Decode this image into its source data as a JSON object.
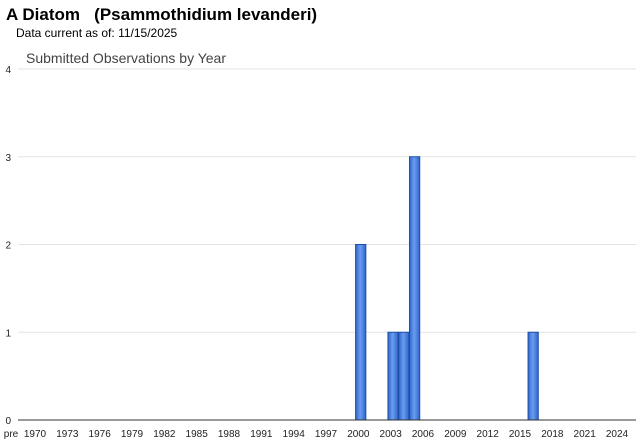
{
  "header": {
    "title": "A Diatom   (Psammothidium levanderi)",
    "data_current_label": "Data current as of:",
    "data_current_date": "11/15/2025"
  },
  "chart_data": {
    "type": "bar",
    "title": "Submitted Observations by Year",
    "xlabel": "",
    "ylabel": "",
    "ylim": [
      0,
      4
    ],
    "y_ticks": [
      0,
      1,
      2,
      3,
      4
    ],
    "x_tick_labels": [
      "pre",
      "1970",
      "1973",
      "1976",
      "1979",
      "1982",
      "1985",
      "1988",
      "1991",
      "1994",
      "1997",
      "2000",
      "2003",
      "2006",
      "2009",
      "2012",
      "2015",
      "2018",
      "2021",
      "2024"
    ],
    "categories": [
      "2000",
      "2003",
      "2004",
      "2005",
      "2016"
    ],
    "values": [
      2,
      1,
      1,
      3,
      1
    ],
    "grid": true,
    "legend": "none",
    "bar_color": "#4a86e8",
    "bar_border_color": "#1c4fa8"
  }
}
